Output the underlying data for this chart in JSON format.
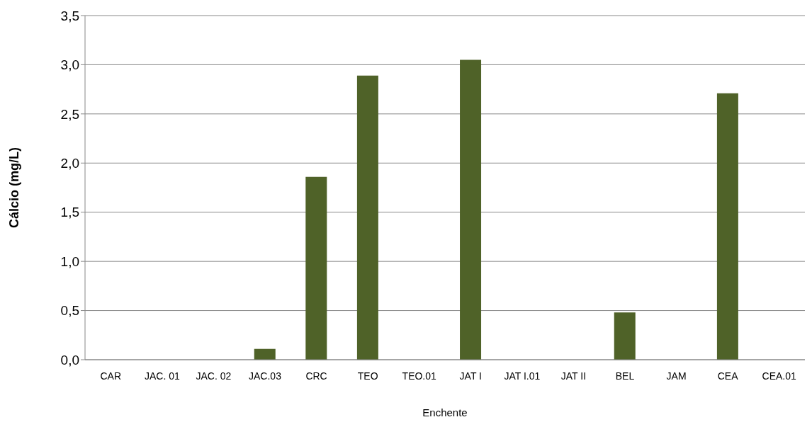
{
  "chart_data": {
    "type": "bar",
    "xlabel": "Enchente",
    "ylabel": "Cálcio (mg/L)",
    "categories": [
      "CAR",
      "JAC. 01",
      "JAC. 02",
      "JAC.03",
      "CRC",
      "TEO",
      "TEO.01",
      "JAT I",
      "JAT I.01",
      "JAT II",
      "BEL",
      "JAM",
      "CEA",
      "CEA.01"
    ],
    "values": [
      null,
      null,
      null,
      0.11,
      1.86,
      2.89,
      null,
      3.05,
      null,
      null,
      0.48,
      null,
      2.71,
      null
    ],
    "color": "#4f6228",
    "ylim": [
      0,
      3.5
    ],
    "yticks": [
      {
        "value": 0,
        "label": "0,0"
      },
      {
        "value": 0.5,
        "label": "0,5"
      },
      {
        "value": 1,
        "label": "1,0"
      },
      {
        "value": 1.5,
        "label": "1,5"
      },
      {
        "value": 2,
        "label": "2,0"
      },
      {
        "value": 2.5,
        "label": "2,5"
      },
      {
        "value": 3,
        "label": "3,0"
      },
      {
        "value": 3.5,
        "label": "3,5"
      }
    ],
    "grid": "y",
    "legend": false
  }
}
